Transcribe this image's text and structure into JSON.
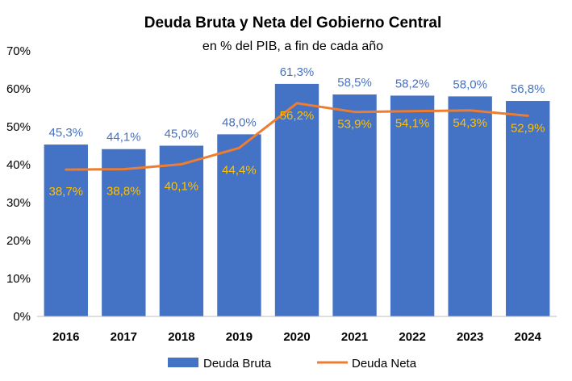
{
  "chart_data": {
    "type": "bar",
    "title": "Deuda Bruta y Neta del Gobierno Central",
    "subtitle": "en % del PIB, a fin de cada año",
    "categories": [
      "2016",
      "2017",
      "2018",
      "2019",
      "2020",
      "2021",
      "2022",
      "2023",
      "2024"
    ],
    "ylim": [
      0,
      70
    ],
    "yticks": [
      0,
      10,
      20,
      30,
      40,
      50,
      60,
      70
    ],
    "ytick_labels": [
      "0%",
      "10%",
      "20%",
      "30%",
      "40%",
      "50%",
      "60%",
      "70%"
    ],
    "grid": false,
    "legend_position": "bottom",
    "series": [
      {
        "name": "Deuda Bruta",
        "kind": "bar",
        "color": "#4472C4",
        "label_color": "#4472C4",
        "values": [
          45.3,
          44.1,
          45.0,
          48.0,
          61.3,
          58.5,
          58.2,
          58.0,
          56.8
        ],
        "labels": [
          "45,3%",
          "44,1%",
          "45,0%",
          "48,0%",
          "61,3%",
          "58,5%",
          "58,2%",
          "58,0%",
          "56,8%"
        ]
      },
      {
        "name": "Deuda Neta",
        "kind": "line",
        "color": "#ED7D31",
        "label_color": "#FFC000",
        "values": [
          38.7,
          38.8,
          40.1,
          44.4,
          56.2,
          53.9,
          54.1,
          54.3,
          52.9
        ],
        "labels": [
          "38,7%",
          "38,8%",
          "40,1%",
          "44,4%",
          "56,2%",
          "53,9%",
          "54,1%",
          "54,3%",
          "52,9%"
        ]
      }
    ]
  }
}
